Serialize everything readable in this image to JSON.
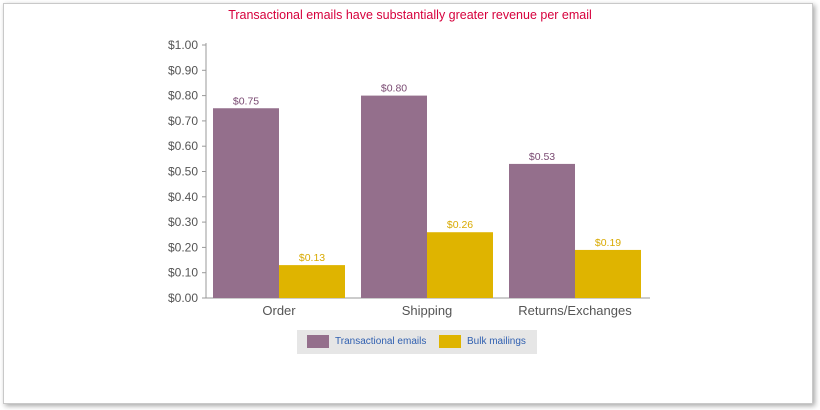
{
  "chart_data": {
    "type": "bar",
    "title": "Transactional emails have substantially greater revenue per email",
    "categories": [
      "Order",
      "Shipping",
      "Returns/Exchanges"
    ],
    "series": [
      {
        "name": "Transactional emails",
        "color": "#946f8c",
        "label_color": "#7a4a72",
        "values": [
          0.75,
          0.8,
          0.53
        ],
        "labels": [
          "$0.75",
          "$0.80",
          "$0.53"
        ]
      },
      {
        "name": "Bulk mailings",
        "color": "#dfb400",
        "label_color": "#d9aa00",
        "values": [
          0.13,
          0.26,
          0.19
        ],
        "labels": [
          "$0.13",
          "$0.26",
          "$0.19"
        ]
      }
    ],
    "ylim": [
      0,
      1.0
    ],
    "yticks": [
      {
        "value": 0.0,
        "label": "$0.00"
      },
      {
        "value": 0.1,
        "label": "$0.10"
      },
      {
        "value": 0.2,
        "label": "$0.20"
      },
      {
        "value": 0.3,
        "label": "$0.30"
      },
      {
        "value": 0.4,
        "label": "$0.40"
      },
      {
        "value": 0.5,
        "label": "$0.50"
      },
      {
        "value": 0.6,
        "label": "$0.60"
      },
      {
        "value": 0.7,
        "label": "$0.70"
      },
      {
        "value": 0.8,
        "label": "$0.80"
      },
      {
        "value": 0.9,
        "label": "$0.90"
      },
      {
        "value": 1.0,
        "label": "$1.00"
      }
    ],
    "grid": false,
    "legend_position": "bottom",
    "title_color": "#d6003c"
  }
}
